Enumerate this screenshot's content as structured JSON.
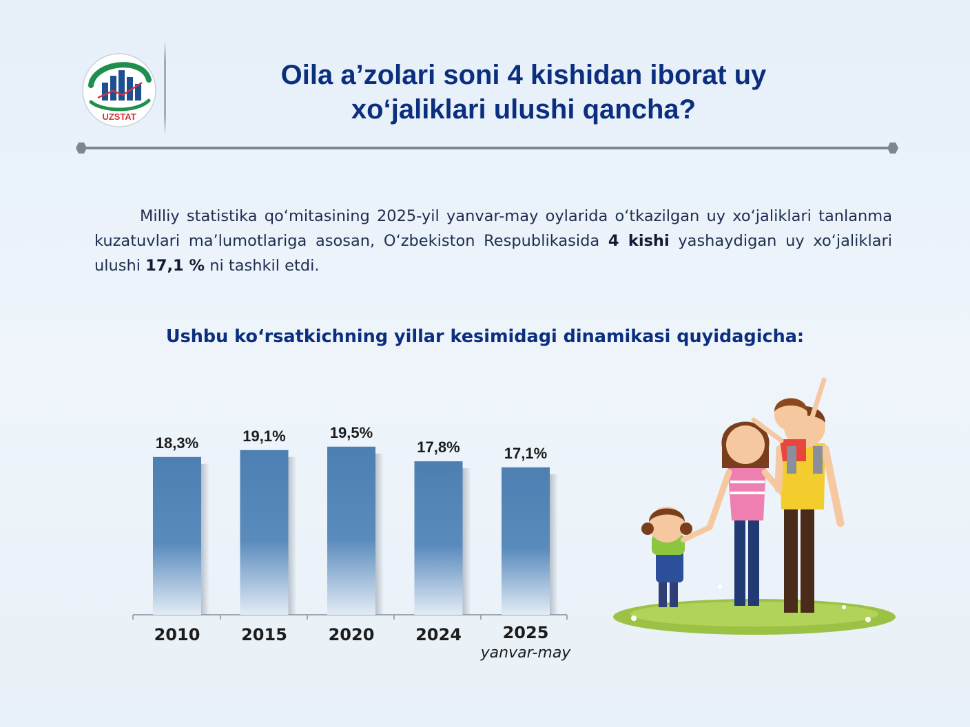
{
  "logo": {
    "text": "UZSTAT"
  },
  "header": {
    "title_line1": "Oila a’zolari soni 4 kishidan iborat uy",
    "title_line2": "xo‘jaliklari ulushi qancha?"
  },
  "intro": {
    "part1": "Milliy statistika qo‘mitasining 2025-yil yanvar-may oylarida o‘tkazilgan uy xo‘jaliklari tanlanma kuzatuvlari ma’lumotlariga asosan, O‘zbekiston Respublikasida ",
    "bold1": "4 kishi",
    "part2": " yashaydigan uy xo‘jaliklari ulushi ",
    "bold2": "17,1 %",
    "part3": " ni tashkil etdi."
  },
  "subtitle": "Ushbu ko‘rsatkichning yillar kesimidagi dinamikasi quyidagicha:",
  "chart_data": {
    "type": "bar",
    "categories": [
      "2010",
      "2015",
      "2020",
      "2024",
      "2025"
    ],
    "category_notes": [
      "",
      "",
      "",
      "",
      "yanvar-may"
    ],
    "values": [
      18.3,
      19.1,
      19.5,
      17.8,
      17.1
    ],
    "value_labels": [
      "18,3%",
      "19,1%",
      "19,5%",
      "17,8%",
      "17,1%"
    ],
    "unit": "%",
    "ylim": [
      0,
      20.6
    ],
    "grid": false,
    "legend": "none",
    "colors": {
      "bar_top": "#4d7fb2",
      "bar_bottom": "#e2ebf5",
      "label": "#1c1c1c"
    }
  },
  "colors": {
    "title": "#0b2e7e",
    "divider": "#7d858e",
    "text": "#1e2e4e"
  }
}
